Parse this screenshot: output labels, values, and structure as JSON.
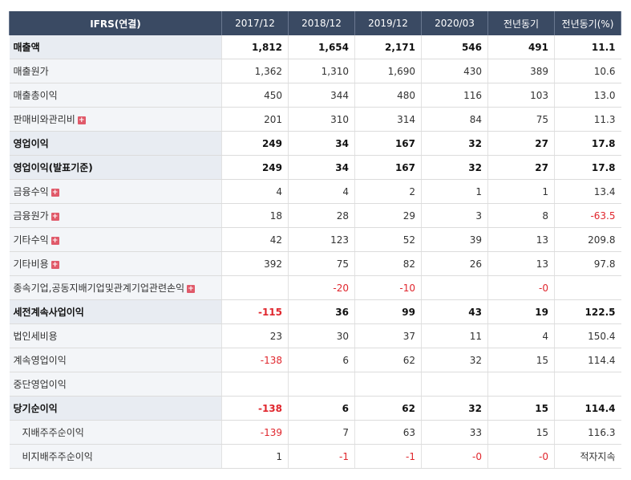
{
  "header": [
    "IFRS(연결)",
    "2017/12",
    "2018/12",
    "2019/12",
    "2020/03",
    "전년동기",
    "전년동기(%)"
  ],
  "rows": [
    {
      "label": "매출액",
      "bold": true,
      "plus": false,
      "indent": false,
      "values": [
        "1,812",
        "1,654",
        "2,171",
        "546",
        "491",
        "11.1"
      ]
    },
    {
      "label": "매출원가",
      "bold": false,
      "plus": false,
      "indent": false,
      "values": [
        "1,362",
        "1,310",
        "1,690",
        "430",
        "389",
        "10.6"
      ]
    },
    {
      "label": "매출총이익",
      "bold": false,
      "plus": false,
      "indent": false,
      "values": [
        "450",
        "344",
        "480",
        "116",
        "103",
        "13.0"
      ]
    },
    {
      "label": "판매비와관리비",
      "bold": false,
      "plus": true,
      "indent": false,
      "values": [
        "201",
        "310",
        "314",
        "84",
        "75",
        "11.3"
      ]
    },
    {
      "label": "영업이익",
      "bold": true,
      "plus": false,
      "indent": false,
      "values": [
        "249",
        "34",
        "167",
        "32",
        "27",
        "17.8"
      ]
    },
    {
      "label": "영업이익(발표기준)",
      "bold": true,
      "plus": false,
      "indent": false,
      "values": [
        "249",
        "34",
        "167",
        "32",
        "27",
        "17.8"
      ]
    },
    {
      "label": "금융수익",
      "bold": false,
      "plus": true,
      "indent": false,
      "values": [
        "4",
        "4",
        "2",
        "1",
        "1",
        "13.4"
      ]
    },
    {
      "label": "금융원가",
      "bold": false,
      "plus": true,
      "indent": false,
      "values": [
        "18",
        "28",
        "29",
        "3",
        "8",
        "-63.5"
      ]
    },
    {
      "label": "기타수익",
      "bold": false,
      "plus": true,
      "indent": false,
      "values": [
        "42",
        "123",
        "52",
        "39",
        "13",
        "209.8"
      ]
    },
    {
      "label": "기타비용",
      "bold": false,
      "plus": true,
      "indent": false,
      "values": [
        "392",
        "75",
        "82",
        "26",
        "13",
        "97.8"
      ]
    },
    {
      "label": "종속기업,공동지배기업및관계기업관련손익",
      "bold": false,
      "plus": true,
      "indent": false,
      "values": [
        "",
        "-20",
        "-10",
        "",
        "-0",
        ""
      ]
    },
    {
      "label": "세전계속사업이익",
      "bold": true,
      "plus": false,
      "indent": false,
      "values": [
        "-115",
        "36",
        "99",
        "43",
        "19",
        "122.5"
      ]
    },
    {
      "label": "법인세비용",
      "bold": false,
      "plus": false,
      "indent": false,
      "values": [
        "23",
        "30",
        "37",
        "11",
        "4",
        "150.4"
      ]
    },
    {
      "label": "계속영업이익",
      "bold": false,
      "plus": false,
      "indent": false,
      "values": [
        "-138",
        "6",
        "62",
        "32",
        "15",
        "114.4"
      ]
    },
    {
      "label": "중단영업이익",
      "bold": false,
      "plus": false,
      "indent": false,
      "values": [
        "",
        "",
        "",
        "",
        "",
        ""
      ]
    },
    {
      "label": "당기순이익",
      "bold": true,
      "plus": false,
      "indent": false,
      "values": [
        "-138",
        "6",
        "62",
        "32",
        "15",
        "114.4"
      ]
    },
    {
      "label": "지배주주순이익",
      "bold": false,
      "plus": false,
      "indent": true,
      "values": [
        "-139",
        "7",
        "63",
        "33",
        "15",
        "116.3"
      ]
    },
    {
      "label": "비지배주주순이익",
      "bold": false,
      "plus": false,
      "indent": true,
      "values": [
        "1",
        "-1",
        "-1",
        "-0",
        "-0",
        "적자지속"
      ]
    }
  ]
}
